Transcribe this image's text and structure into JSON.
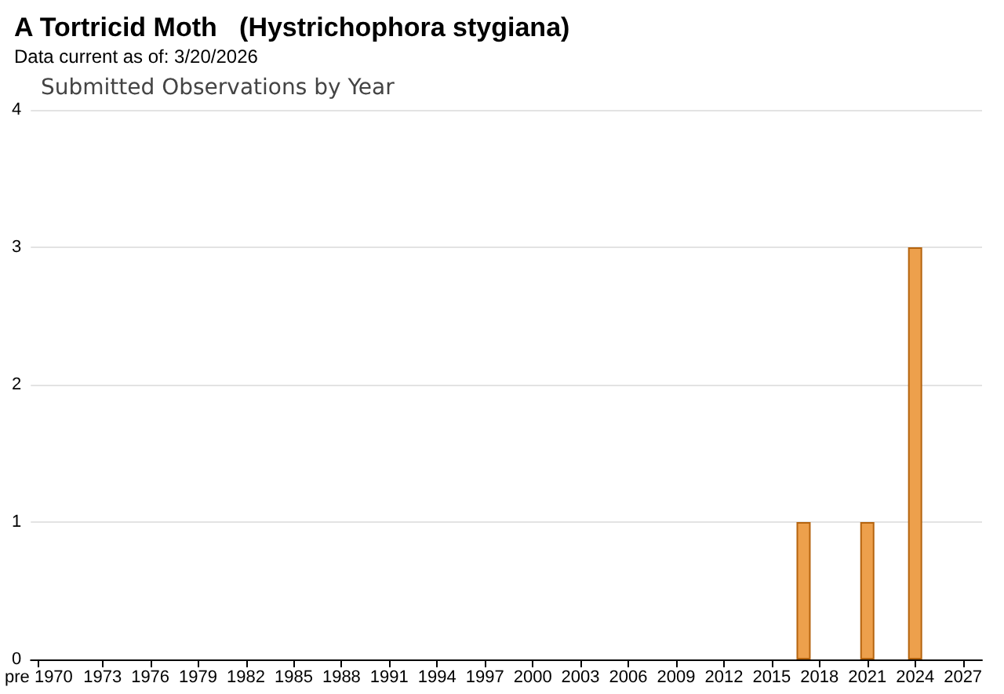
{
  "chart_data": {
    "type": "bar",
    "title": "A Tortricid Moth   (Hystrichophora stygiana)",
    "subtitle": "Data current as of: 3/20/2026",
    "annotations": [
      "Submitted Observations by Year"
    ],
    "x": [
      2017,
      2021,
      2024
    ],
    "values": [
      1,
      1,
      3
    ],
    "color": "#eda04c",
    "xlim": [
      1968.5,
      2028.2
    ],
    "xticks": [
      {
        "value": 1969,
        "label": "pre 1970"
      },
      1973,
      1976,
      1979,
      1982,
      1985,
      1988,
      1991,
      1994,
      1997,
      2000,
      2003,
      2006,
      2009,
      2012,
      2015,
      2018,
      2021,
      2024,
      2027
    ],
    "ylim": [
      0,
      4
    ],
    "yticks": [
      0,
      1,
      2,
      3,
      4
    ],
    "grid": "y"
  }
}
